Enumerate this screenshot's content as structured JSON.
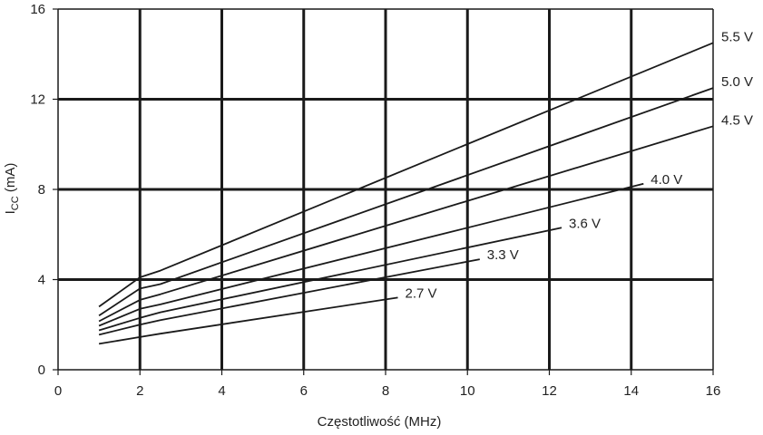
{
  "chart_data": {
    "type": "line",
    "xlabel": "Częstotliwość (MHz)",
    "ylabel_main": "I",
    "ylabel_sub": "CC",
    "ylabel_unit": " (mA)",
    "xlim": [
      0,
      16
    ],
    "ylim": [
      0,
      16
    ],
    "x_ticks": [
      "0",
      "2",
      "4",
      "6",
      "8",
      "10",
      "12",
      "14",
      "16"
    ],
    "y_ticks": [
      "0",
      "4",
      "8",
      "12",
      "16"
    ],
    "grid": true,
    "series": [
      {
        "name": "5.5 V",
        "points": [
          [
            1,
            2.8
          ],
          [
            2,
            4.1
          ],
          [
            2.5,
            4.4
          ],
          [
            16,
            14.5
          ]
        ]
      },
      {
        "name": "5.0 V",
        "points": [
          [
            1,
            2.4
          ],
          [
            2,
            3.6
          ],
          [
            2.5,
            3.8
          ],
          [
            16,
            12.5
          ]
        ]
      },
      {
        "name": "4.5 V",
        "points": [
          [
            1,
            2.15
          ],
          [
            2,
            3.1
          ],
          [
            2.5,
            3.35
          ],
          [
            16,
            10.8
          ]
        ]
      },
      {
        "name": "4.0 V",
        "points": [
          [
            1,
            1.95
          ],
          [
            2,
            2.7
          ],
          [
            2.5,
            2.9
          ],
          [
            14.3,
            8.25
          ]
        ]
      },
      {
        "name": "3.6 V",
        "points": [
          [
            1,
            1.75
          ],
          [
            2,
            2.3
          ],
          [
            2.5,
            2.55
          ],
          [
            12.3,
            6.3
          ]
        ]
      },
      {
        "name": "3.3 V",
        "points": [
          [
            1,
            1.55
          ],
          [
            2,
            2.0
          ],
          [
            2.5,
            2.2
          ],
          [
            10.3,
            4.9
          ]
        ]
      },
      {
        "name": "2.7 V",
        "points": [
          [
            1,
            1.15
          ],
          [
            2,
            1.45
          ],
          [
            2.5,
            1.6
          ],
          [
            8.3,
            3.2
          ]
        ]
      }
    ]
  }
}
